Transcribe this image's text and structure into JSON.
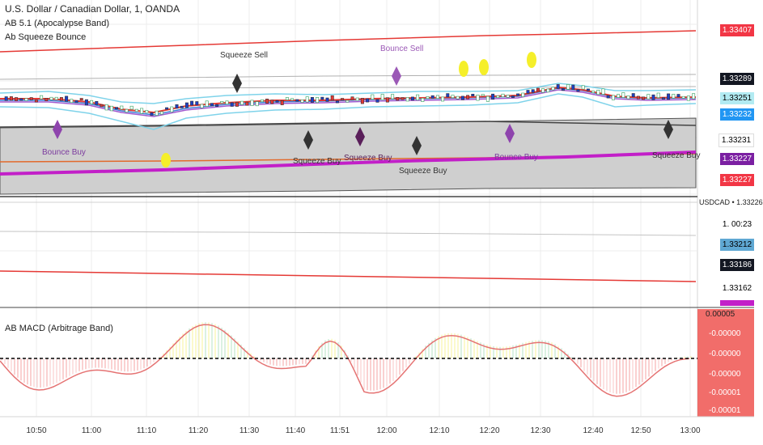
{
  "header": {
    "symbol_title": "U.S. Dollar / Canadian Dollar, 1, OANDA",
    "indicator_1": "AB 5.1 (Apocalypse Band)",
    "indicator_2": "Ab Squeeze Bounce",
    "indicator_3": "AB MACD (Arbitrage Band)"
  },
  "signals": {
    "squeeze_sell": "Squeeze Sell",
    "bounce_sell": "Bounce Sell",
    "bounce_buy": "Bounce Buy",
    "squeeze_buy": "Squeeze Buy"
  },
  "price_scale": {
    "tags": [
      {
        "value": "1.33407",
        "color": "#f23645",
        "text_color": "#ffffff"
      },
      {
        "value": "1.33289",
        "color": "#131722",
        "text_color": "#ffffff"
      },
      {
        "value": "1.33251",
        "color": "#b2ebf2",
        "text_color": "#000000"
      },
      {
        "value": "1.33232",
        "color": "#2196f3",
        "text_color": "#ffffff"
      },
      {
        "value": "1.33231",
        "color": "#ffffff",
        "text_color": "#000000"
      },
      {
        "value": "1.33227",
        "color": "#7b1fa2",
        "text_color": "#ffffff"
      },
      {
        "value": "1.33227",
        "color": "#f23645",
        "text_color": "#ffffff"
      }
    ],
    "symbol_price": "USDCAD • 1.33226",
    "lower_tags": [
      {
        "value": "1. 00:23",
        "color": "#ffffff",
        "text_color": "#000000"
      },
      {
        "value": "1.33212",
        "color": "#5fa8d3",
        "text_color": "#000000"
      },
      {
        "value": "1.33186",
        "color": "#131722",
        "text_color": "#ffffff"
      },
      {
        "value": "1.33162",
        "color": "#ffffff",
        "text_color": "#000000"
      }
    ]
  },
  "macd_scale": {
    "top_value": "0.00005",
    "values": [
      "-0.00000",
      "-0.00000",
      "-0.00000",
      "-0.00001",
      "-0.00001"
    ]
  },
  "time_axis": [
    "10:50",
    "11:00",
    "11:10",
    "11:20",
    "11:30",
    "11:40",
    "11:51",
    "12:00",
    "12:10",
    "12:20",
    "12:30",
    "12:40",
    "12:50",
    "13:00"
  ],
  "colors": {
    "upper_band": "#e53935",
    "middle_band": "#9c27b0",
    "cloud": "#c8c8c8",
    "bull_candle": "#00bcd4",
    "bear_candle": "#e53935",
    "signal_yellow": "#f5ef2a",
    "signal_purple": "#8e44ad",
    "signal_dark": "#333333"
  }
}
